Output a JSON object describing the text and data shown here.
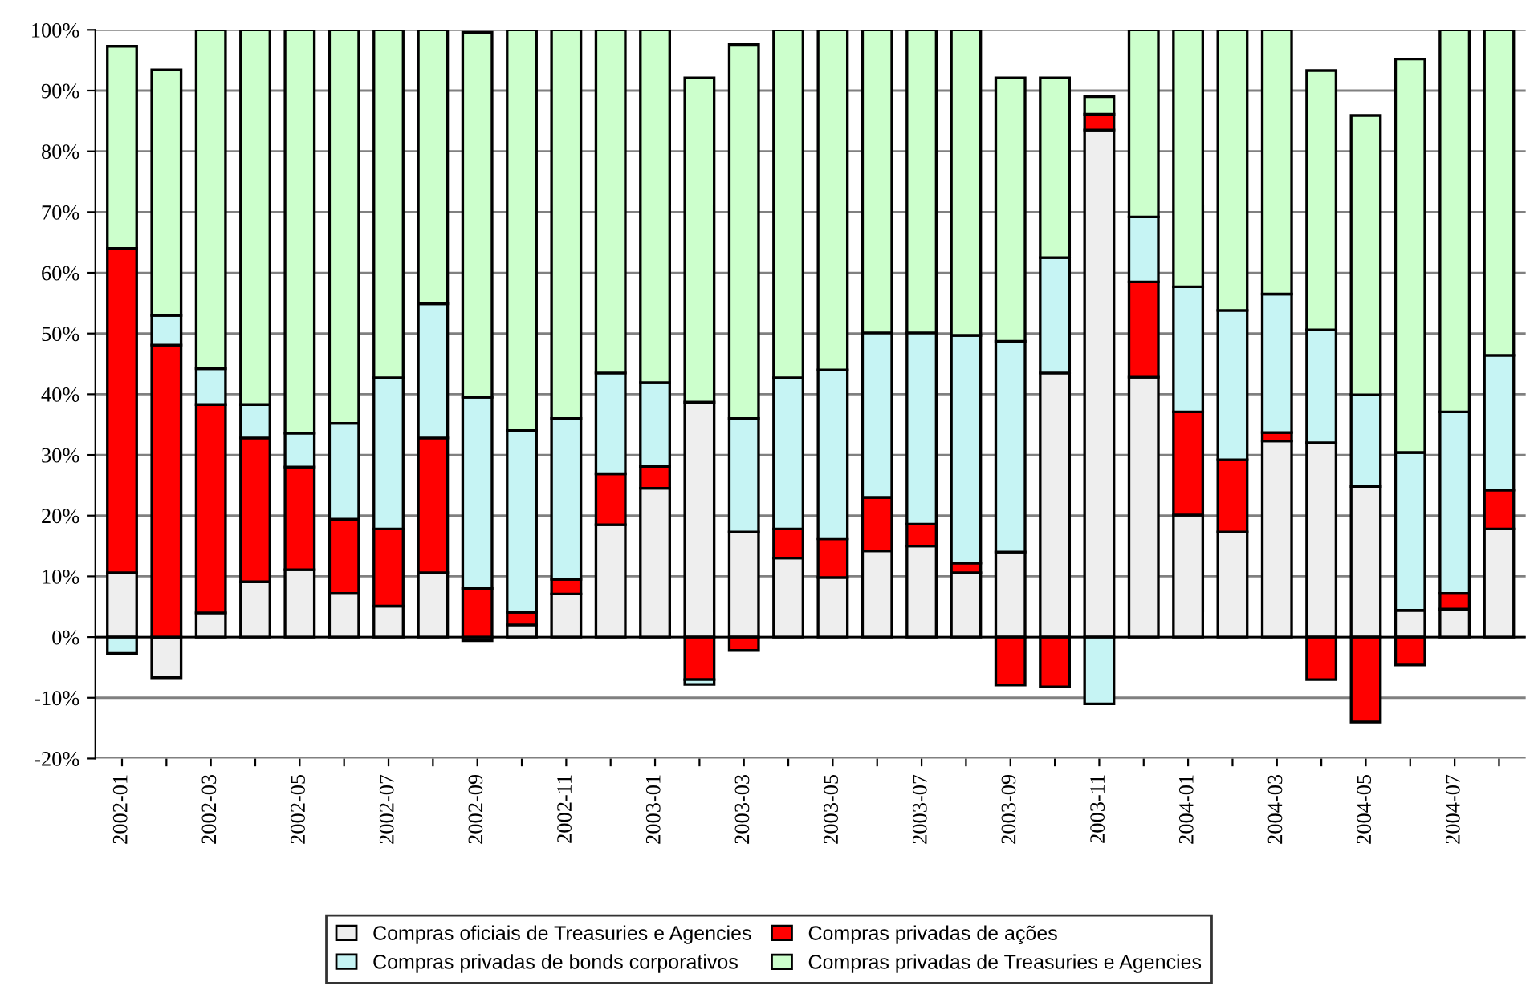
{
  "chart_data": {
    "type": "bar",
    "stacked": true,
    "categories": [
      "2002-01",
      null,
      "2002-03",
      null,
      "2002-05",
      null,
      "2002-07",
      null,
      "2002-09",
      null,
      "2002-11",
      null,
      "2003-01",
      null,
      "2003-03",
      null,
      "2003-05",
      null,
      "2003-07",
      null,
      "2003-09",
      null,
      "2003-11",
      null,
      "2004-01",
      null,
      "2004-03",
      null,
      "2004-05",
      null,
      "2004-07",
      null
    ],
    "series": [
      {
        "name": "Compras oficiais de Treasuries e Agencies",
        "color": "#eeeeee",
        "values": [
          10.6,
          -6.7,
          4.0,
          9.1,
          11.1,
          7.2,
          5.1,
          10.6,
          -0.6,
          2.0,
          7.1,
          18.5,
          24.5,
          38.7,
          17.3,
          13.0,
          9.8,
          14.2,
          15.0,
          10.6,
          14.0,
          43.5,
          83.5,
          42.8,
          20.1,
          17.3,
          32.3,
          32.0,
          24.8,
          4.4,
          4.6,
          17.8
        ]
      },
      {
        "name": "Compras privadas de ações",
        "color": "#ff0000",
        "values": [
          53.4,
          48.1,
          34.3,
          23.7,
          16.9,
          12.2,
          12.7,
          22.2,
          8.0,
          2.1,
          2.4,
          8.4,
          3.6,
          -7.0,
          -2.2,
          4.8,
          6.4,
          8.8,
          3.6,
          1.6,
          -7.9,
          -8.2,
          2.6,
          15.7,
          17.0,
          11.9,
          1.4,
          -7.0,
          -14.0,
          -4.6,
          2.6,
          6.4
        ]
      },
      {
        "name": "Compras privadas de bonds corporativos",
        "color": "#c6f4f4",
        "values": [
          -2.7,
          4.9,
          5.9,
          5.5,
          5.6,
          15.8,
          24.9,
          22.1,
          31.5,
          29.9,
          26.5,
          16.6,
          13.8,
          -0.8,
          18.7,
          24.9,
          27.8,
          27.1,
          31.5,
          37.5,
          34.7,
          19.0,
          -11.0,
          10.7,
          20.6,
          24.6,
          22.8,
          18.6,
          15.1,
          26.0,
          29.9,
          22.2
        ]
      },
      {
        "name": "Compras privadas de Treasuries e Agencies",
        "color": "#ccffcc",
        "values": [
          33.3,
          40.4,
          55.8,
          61.7,
          66.4,
          64.8,
          57.3,
          45.1,
          60.1,
          66.0,
          64.0,
          56.5,
          58.1,
          53.4,
          61.6,
          57.3,
          56.0,
          49.9,
          49.9,
          50.3,
          43.4,
          29.6,
          2.9,
          30.8,
          42.3,
          46.2,
          43.5,
          42.7,
          46.0,
          64.8,
          62.9,
          53.6
        ]
      }
    ],
    "ylim": [
      -20,
      100
    ],
    "yticks": [
      {
        "value": -20,
        "label": "-20%"
      },
      {
        "value": -10,
        "label": "-10%"
      },
      {
        "value": 0,
        "label": "0%"
      },
      {
        "value": 10,
        "label": "10%"
      },
      {
        "value": 20,
        "label": "20%"
      },
      {
        "value": 30,
        "label": "30%"
      },
      {
        "value": 40,
        "label": "40%"
      },
      {
        "value": 50,
        "label": "50%"
      },
      {
        "value": 60,
        "label": "60%"
      },
      {
        "value": 70,
        "label": "70%"
      },
      {
        "value": 80,
        "label": "80%"
      },
      {
        "value": 90,
        "label": "90%"
      },
      {
        "value": 100,
        "label": "100%"
      }
    ],
    "grid": "y",
    "legend": "bottom"
  }
}
